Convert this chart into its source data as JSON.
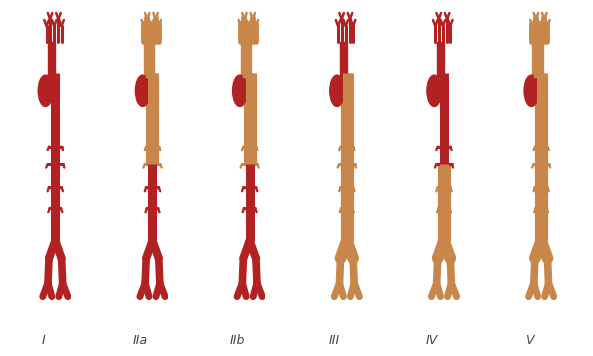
{
  "bg_color": "#ffffff",
  "artery_red": "#9B1C1C",
  "artery_fill": "#B22222",
  "wall_color": "#C8864A",
  "wall_light": "#D4956A",
  "labels": [
    "I",
    "IIa",
    "IIb",
    "III",
    "IV",
    "V"
  ],
  "label_fontsize": 9,
  "label_color": "#444444",
  "figsize": [
    5.93,
    3.56
  ],
  "dpi": 100,
  "affected_arch": [
    false,
    true,
    true,
    false,
    false,
    true
  ],
  "affected_upper_aorta": [
    false,
    true,
    true,
    true,
    false,
    true
  ],
  "affected_lower_aorta": [
    false,
    false,
    false,
    true,
    true,
    true
  ],
  "n_panels": 6
}
